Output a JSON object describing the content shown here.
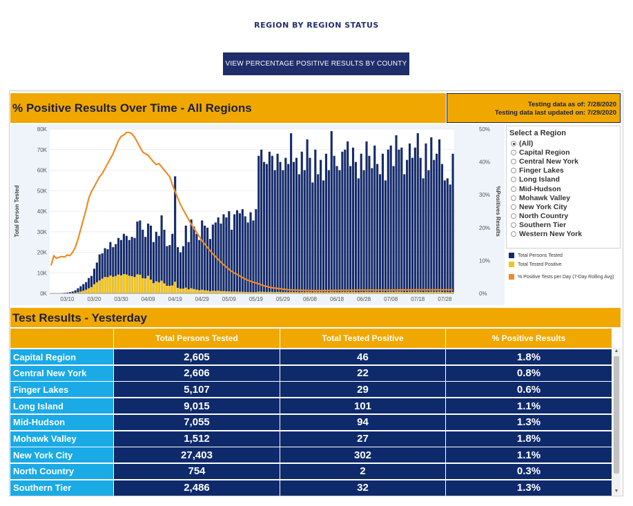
{
  "page": {
    "title": "REGION BY REGION STATUS",
    "county_button": "VIEW PERCENTAGE POSITIVE RESULTS BY COUNTY"
  },
  "chart_header": {
    "title": "% Positive Results Over Time - All Regions",
    "testing_asof": "Testing data as of: 7/28/2020",
    "testing_updated": "Testing data last updated on: 7/29/2020"
  },
  "colors": {
    "bar_tested": "#142a6b",
    "bar_positive": "#f5c518",
    "line_pct": "#f08a24",
    "header_gold": "#f0a800",
    "row_name_blue": "#1aaae6",
    "cell_navy": "#0f2a6b"
  },
  "region_selector": {
    "title": "Select a Region",
    "options": [
      "(All)",
      "Capital Region",
      "Central New York",
      "Finger Lakes",
      "Long Island",
      "Mid-Hudson",
      "Mohawk Valley",
      "New York City",
      "North Country",
      "Southern Tier",
      "Western New York"
    ],
    "selected": "(All)"
  },
  "legend": {
    "tested": "Total Persons Tested",
    "positive": "Total Tested Positive",
    "pct": "% Positive Tests per Day (7-Day Rolling Avg)"
  },
  "chart_data": {
    "type": "bar",
    "ylabel": "Total Person Tested",
    "y2label": "%Positives Results",
    "ylim": [
      0,
      80000
    ],
    "y2lim": [
      0,
      50
    ],
    "yticks": [
      "0K",
      "10K",
      "20K",
      "30K",
      "40K",
      "50K",
      "60K",
      "70K",
      "80K"
    ],
    "y2ticks": [
      "0%",
      "10%",
      "20%",
      "30%",
      "40%",
      "50%"
    ],
    "xticks": [
      "03/10",
      "03/20",
      "03/30",
      "04/09",
      "04/19",
      "04/29",
      "05/09",
      "05/19",
      "05/29",
      "06/08",
      "06/18",
      "06/28",
      "07/08",
      "07/18",
      "07/28"
    ],
    "start_date": "2020-03-04",
    "series": [
      {
        "name": "Total Persons Tested",
        "values": [
          0,
          10,
          50,
          100,
          200,
          300,
          400,
          600,
          900,
          1500,
          2500,
          3500,
          4500,
          5500,
          7500,
          8500,
          12000,
          15000,
          19000,
          19500,
          22000,
          21500,
          25000,
          22500,
          24000,
          27000,
          26000,
          29000,
          28000,
          26000,
          27500,
          27000,
          35000,
          35500,
          31000,
          27500,
          34000,
          33000,
          25000,
          30000,
          28000,
          38000,
          31000,
          23000,
          23500,
          29000,
          57000,
          22500,
          20000,
          23000,
          33000,
          25000,
          36000,
          32500,
          29000,
          26000,
          35500,
          33000,
          32000,
          26500,
          33500,
          34500,
          37000,
          34000,
          38500,
          37000,
          40000,
          31000,
          38500,
          40500,
          39000,
          41000,
          37500,
          34500,
          39500,
          35500,
          41000,
          67000,
          70000,
          64000,
          63000,
          69000,
          67000,
          60000,
          68000,
          64000,
          60000,
          66000,
          63000,
          78000,
          64000,
          66000,
          58000,
          69000,
          60000,
          75000,
          66000,
          54000,
          70000,
          58000,
          65000,
          55000,
          68000,
          60000,
          79000,
          67000,
          62000,
          60000,
          69000,
          70000,
          74000,
          62000,
          71000,
          64000,
          56000,
          68000,
          60000,
          74000,
          67000,
          61000,
          72000,
          63000,
          58000,
          68000,
          55000,
          70000,
          72000,
          62000,
          77000,
          70000,
          71000,
          58000,
          65000,
          73000,
          66000,
          71000,
          78000,
          66000,
          56000,
          73000,
          60000,
          76000,
          65000,
          68000,
          75000,
          63000,
          55000,
          56000,
          53000,
          68000
        ]
      },
      {
        "name": "Total Tested Positive",
        "values": [
          0,
          1,
          5,
          10,
          25,
          40,
          60,
          100,
          160,
          300,
          550,
          900,
          1300,
          1800,
          2500,
          3100,
          4500,
          5400,
          6300,
          7200,
          8000,
          7900,
          8700,
          8100,
          8500,
          9200,
          8800,
          9400,
          9200,
          8600,
          8400,
          8000,
          9300,
          9100,
          7400,
          7300,
          8600,
          6700,
          5000,
          5900,
          5400,
          6200,
          4900,
          3700,
          3700,
          3900,
          5700,
          2700,
          2300,
          2300,
          2800,
          2000,
          2500,
          2100,
          1800,
          1500,
          1800,
          1500,
          1400,
          1100,
          1300,
          1200,
          1300,
          1100,
          1100,
          1000,
          1000,
          850,
          900,
          850,
          800,
          800,
          700,
          650,
          650,
          600,
          650,
          850,
          800,
          750,
          700,
          750,
          700,
          650,
          700,
          650,
          600,
          650,
          600,
          700,
          600,
          650,
          550,
          650,
          600,
          700,
          650,
          550,
          700,
          600,
          650,
          550,
          650,
          600,
          750,
          650,
          650,
          600,
          700,
          700,
          750,
          650,
          750,
          650,
          600,
          700,
          650,
          800,
          750,
          650,
          800,
          700,
          650,
          750,
          600,
          750,
          800,
          700,
          850,
          800,
          800,
          650,
          700,
          800,
          750,
          800,
          850,
          750,
          650,
          800,
          700,
          850,
          750,
          750,
          850,
          700,
          600,
          650,
          550,
          700
        ]
      },
      {
        "name": "% Positive Tests per Day (7-Day Rolling Avg)",
        "points": [
          [
            0,
            8.5
          ],
          [
            1,
            11.5
          ],
          [
            2,
            10.7
          ],
          [
            3,
            11
          ],
          [
            4,
            11.2
          ],
          [
            5,
            11.1
          ],
          [
            6,
            11.7
          ],
          [
            7,
            11.5
          ],
          [
            8,
            12.5
          ],
          [
            9,
            14
          ],
          [
            10,
            16.5
          ],
          [
            11,
            19.5
          ],
          [
            12,
            22.5
          ],
          [
            13,
            25.5
          ],
          [
            14,
            29
          ],
          [
            15,
            31
          ],
          [
            16,
            32.5
          ],
          [
            17,
            34
          ],
          [
            18,
            35.5
          ],
          [
            19,
            36.5
          ],
          [
            20,
            38
          ],
          [
            21,
            39.5
          ],
          [
            22,
            41
          ],
          [
            23,
            42.5
          ],
          [
            24,
            44.5
          ],
          [
            25,
            46.5
          ],
          [
            26,
            47.8
          ],
          [
            27,
            48.2
          ],
          [
            28,
            49
          ],
          [
            29,
            49
          ],
          [
            30,
            48.5
          ],
          [
            31,
            47.5
          ],
          [
            32,
            46
          ],
          [
            33,
            44.5
          ],
          [
            34,
            43
          ],
          [
            35,
            42.5
          ],
          [
            36,
            42
          ],
          [
            37,
            41
          ],
          [
            38,
            40
          ],
          [
            39,
            39.2
          ],
          [
            40,
            39.5
          ],
          [
            41,
            38.5
          ],
          [
            42,
            37.5
          ],
          [
            43,
            36.5
          ],
          [
            44,
            35.5
          ],
          [
            45,
            33
          ],
          [
            46,
            31
          ],
          [
            47,
            29
          ],
          [
            48,
            27
          ],
          [
            49,
            25.5
          ],
          [
            50,
            24
          ],
          [
            51,
            22.5
          ],
          [
            52,
            21
          ],
          [
            53,
            19.8
          ],
          [
            54,
            18.5
          ],
          [
            55,
            17.3
          ],
          [
            56,
            16
          ],
          [
            57,
            15
          ],
          [
            58,
            14
          ],
          [
            59,
            13
          ],
          [
            60,
            12
          ],
          [
            61,
            11.2
          ],
          [
            62,
            10.3
          ],
          [
            63,
            9.5
          ],
          [
            64,
            8.7
          ],
          [
            65,
            8
          ],
          [
            66,
            7.3
          ],
          [
            67,
            6.7
          ],
          [
            68,
            6.2
          ],
          [
            69,
            5.8
          ],
          [
            70,
            5.3
          ],
          [
            71,
            4.8
          ],
          [
            72,
            4.4
          ],
          [
            73,
            4
          ],
          [
            74,
            3.7
          ],
          [
            75,
            3.4
          ],
          [
            76,
            3.2
          ],
          [
            77,
            2.9
          ],
          [
            78,
            2.6
          ],
          [
            79,
            2.3
          ],
          [
            80,
            2.1
          ],
          [
            81,
            1.9
          ],
          [
            82,
            1.7
          ],
          [
            83,
            1.6
          ],
          [
            84,
            1.5
          ],
          [
            85,
            1.4
          ],
          [
            86,
            1.3
          ],
          [
            87,
            1.2
          ],
          [
            88,
            1.1
          ],
          [
            89,
            1.05
          ],
          [
            90,
            1
          ],
          [
            92,
            0.95
          ],
          [
            95,
            0.9
          ],
          [
            98,
            0.85
          ],
          [
            100,
            0.85
          ],
          [
            105,
            0.9
          ],
          [
            110,
            0.95
          ],
          [
            115,
            1
          ],
          [
            120,
            1
          ],
          [
            125,
            1
          ],
          [
            130,
            1.05
          ],
          [
            135,
            1.1
          ],
          [
            140,
            1.1
          ],
          [
            145,
            1.1
          ],
          [
            149,
            1.1
          ]
        ]
      }
    ]
  },
  "results": {
    "title": "Test Results - Yesterday",
    "columns": [
      "Total Persons Tested",
      "Total Tested Positive",
      "% Positive Results"
    ],
    "rows": [
      {
        "region": "Capital Region",
        "tested": "2,605",
        "positive": "46",
        "pct": "1.8%"
      },
      {
        "region": "Central New York",
        "tested": "2,606",
        "positive": "22",
        "pct": "0.8%"
      },
      {
        "region": "Finger Lakes",
        "tested": "5,107",
        "positive": "29",
        "pct": "0.6%"
      },
      {
        "region": "Long Island",
        "tested": "9,015",
        "positive": "101",
        "pct": "1.1%"
      },
      {
        "region": "Mid-Hudson",
        "tested": "7,055",
        "positive": "94",
        "pct": "1.3%"
      },
      {
        "region": "Mohawk Valley",
        "tested": "1,512",
        "positive": "27",
        "pct": "1.8%"
      },
      {
        "region": "New York City",
        "tested": "27,403",
        "positive": "302",
        "pct": "1.1%"
      },
      {
        "region": "North Country",
        "tested": "754",
        "positive": "2",
        "pct": "0.3%"
      },
      {
        "region": "Southern Tier",
        "tested": "2,486",
        "positive": "32",
        "pct": "1.3%"
      }
    ]
  }
}
